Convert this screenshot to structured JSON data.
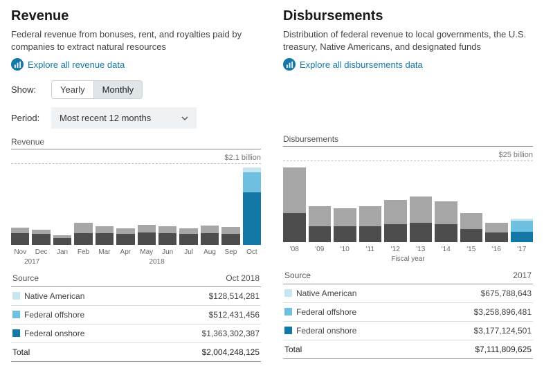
{
  "colors": {
    "link": "#1478a6",
    "seg_light": "#c8e6f0",
    "seg_mid": "#a6a6a6",
    "seg_dark": "#4d4d4d",
    "seg_blue": "#1478a6",
    "seg_lblue": "#6fc0e0",
    "grid_dash": "#bbbbbb",
    "border": "#999999"
  },
  "revenue": {
    "heading": "Revenue",
    "desc": "Federal revenue from bonuses, rent, and royalties paid by companies to extract natural resources",
    "explore": "Explore all revenue data",
    "show_label": "Show:",
    "toggle": {
      "opt1": "Yearly",
      "opt2": "Monthly",
      "active": 2
    },
    "period_label": "Period:",
    "period_value": "Most recent 12 months",
    "chart": {
      "title": "Revenue",
      "y_max_label": "$2.1 billion",
      "y_max": 2.1,
      "categories": [
        "Nov",
        "Dec",
        "Jan",
        "Feb",
        "Mar",
        "Apr",
        "May",
        "Jun",
        "Jul",
        "Aug",
        "Sep",
        "Oct"
      ],
      "year_spans": [
        {
          "label": "2017",
          "cols": 2
        },
        {
          "label": "2018",
          "cols": 10
        }
      ],
      "stacks": [
        {
          "segs": [
            {
              "v": 0.3,
              "c": "seg_dark"
            },
            {
              "v": 0.15,
              "c": "seg_mid"
            }
          ]
        },
        {
          "segs": [
            {
              "v": 0.28,
              "c": "seg_dark"
            },
            {
              "v": 0.12,
              "c": "seg_mid"
            }
          ]
        },
        {
          "segs": [
            {
              "v": 0.18,
              "c": "seg_dark"
            },
            {
              "v": 0.08,
              "c": "seg_mid"
            }
          ]
        },
        {
          "segs": [
            {
              "v": 0.3,
              "c": "seg_dark"
            },
            {
              "v": 0.28,
              "c": "seg_mid"
            }
          ]
        },
        {
          "segs": [
            {
              "v": 0.3,
              "c": "seg_dark"
            },
            {
              "v": 0.18,
              "c": "seg_mid"
            }
          ]
        },
        {
          "segs": [
            {
              "v": 0.28,
              "c": "seg_dark"
            },
            {
              "v": 0.15,
              "c": "seg_mid"
            }
          ]
        },
        {
          "segs": [
            {
              "v": 0.32,
              "c": "seg_dark"
            },
            {
              "v": 0.2,
              "c": "seg_mid"
            }
          ]
        },
        {
          "segs": [
            {
              "v": 0.3,
              "c": "seg_dark"
            },
            {
              "v": 0.18,
              "c": "seg_mid"
            }
          ]
        },
        {
          "segs": [
            {
              "v": 0.28,
              "c": "seg_dark"
            },
            {
              "v": 0.15,
              "c": "seg_mid"
            }
          ]
        },
        {
          "segs": [
            {
              "v": 0.3,
              "c": "seg_dark"
            },
            {
              "v": 0.2,
              "c": "seg_mid"
            }
          ]
        },
        {
          "segs": [
            {
              "v": 0.28,
              "c": "seg_dark"
            },
            {
              "v": 0.18,
              "c": "seg_mid"
            }
          ]
        },
        {
          "segs": [
            {
              "v": 1.36,
              "c": "seg_blue"
            },
            {
              "v": 0.51,
              "c": "seg_lblue"
            },
            {
              "v": 0.13,
              "c": "seg_light"
            }
          ]
        }
      ]
    },
    "table": {
      "source_label": "Source",
      "period_label": "Oct 2018",
      "rows": [
        {
          "swatch": "seg_light",
          "label": "Native American",
          "value": "$128,514,281"
        },
        {
          "swatch": "seg_lblue",
          "label": "Federal offshore",
          "value": "$512,431,456"
        },
        {
          "swatch": "seg_blue",
          "label": "Federal onshore",
          "value": "$1,363,302,387"
        }
      ],
      "total_label": "Total",
      "total_value": "$2,004,248,125"
    }
  },
  "disbursements": {
    "heading": "Disbursements",
    "desc": "Distribution of federal revenue to local governments, the U.S. treasury, Native Americans, and designated funds",
    "explore": "Explore all disbursements data",
    "chart": {
      "title": "Disbursements",
      "y_max_label": "$25 billion",
      "y_max": 25,
      "axis_title": "Fiscal year",
      "categories": [
        "'08",
        "'09",
        "'10",
        "'11",
        "'12",
        "'13",
        "'14",
        "'15",
        "'16",
        "'17"
      ],
      "stacks": [
        {
          "segs": [
            {
              "v": 9,
              "c": "seg_dark"
            },
            {
              "v": 14,
              "c": "seg_mid"
            }
          ]
        },
        {
          "segs": [
            {
              "v": 5,
              "c": "seg_dark"
            },
            {
              "v": 6,
              "c": "seg_mid"
            }
          ]
        },
        {
          "segs": [
            {
              "v": 5,
              "c": "seg_dark"
            },
            {
              "v": 5.5,
              "c": "seg_mid"
            }
          ]
        },
        {
          "segs": [
            {
              "v": 5,
              "c": "seg_dark"
            },
            {
              "v": 6,
              "c": "seg_mid"
            }
          ]
        },
        {
          "segs": [
            {
              "v": 5.5,
              "c": "seg_dark"
            },
            {
              "v": 7.5,
              "c": "seg_mid"
            }
          ]
        },
        {
          "segs": [
            {
              "v": 6,
              "c": "seg_dark"
            },
            {
              "v": 8,
              "c": "seg_mid"
            }
          ]
        },
        {
          "segs": [
            {
              "v": 5.5,
              "c": "seg_dark"
            },
            {
              "v": 7,
              "c": "seg_mid"
            }
          ]
        },
        {
          "segs": [
            {
              "v": 4,
              "c": "seg_dark"
            },
            {
              "v": 5,
              "c": "seg_mid"
            }
          ]
        },
        {
          "segs": [
            {
              "v": 3,
              "c": "seg_dark"
            },
            {
              "v": 3,
              "c": "seg_mid"
            }
          ]
        },
        {
          "segs": [
            {
              "v": 3.2,
              "c": "seg_blue"
            },
            {
              "v": 3.3,
              "c": "seg_lblue"
            },
            {
              "v": 0.7,
              "c": "seg_light"
            }
          ]
        }
      ]
    },
    "table": {
      "source_label": "Source",
      "period_label": "2017",
      "rows": [
        {
          "swatch": "seg_light",
          "label": "Native American",
          "value": "$675,788,643"
        },
        {
          "swatch": "seg_lblue",
          "label": "Federal offshore",
          "value": "$3,258,896,481"
        },
        {
          "swatch": "seg_blue",
          "label": "Federal onshore",
          "value": "$3,177,124,501"
        }
      ],
      "total_label": "Total",
      "total_value": "$7,111,809,625"
    }
  }
}
